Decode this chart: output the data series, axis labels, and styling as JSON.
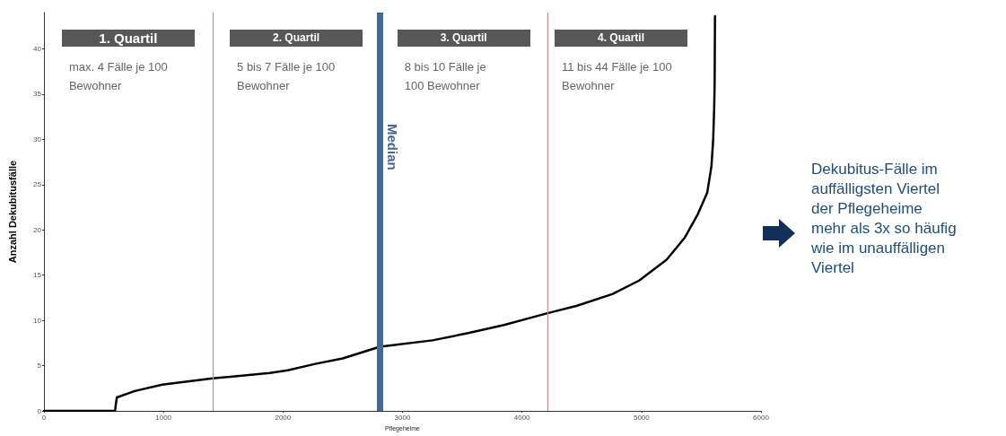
{
  "chart_data": {
    "type": "line",
    "xlabel": "Pflegeheime",
    "ylabel": "Anzahl Dekubitusfälle",
    "x": [
      0,
      595,
      600,
      610,
      760,
      990,
      1410,
      1890,
      2040,
      2270,
      2500,
      2811,
      3250,
      3550,
      3850,
      4213,
      4455,
      4755,
      4980,
      5210,
      5360,
      5470,
      5550,
      5585,
      5600,
      5608,
      5612,
      5615
    ],
    "series": [
      {
        "color": "#000000",
        "values": [
          0,
          0,
          0.6,
          1.5,
          2.2,
          2.9,
          3.6,
          4.2,
          4.5,
          5.2,
          5.8,
          7.1,
          7.8,
          8.6,
          9.5,
          10.8,
          11.6,
          12.9,
          14.4,
          16.7,
          19.1,
          21.7,
          24.1,
          27,
          30,
          33.4,
          36.1,
          43.6
        ]
      }
    ],
    "xlim": [
      0,
      6000
    ],
    "ylim": [
      0,
      44
    ],
    "xticks": [
      0,
      1000,
      2000,
      3000,
      4000,
      5000,
      6000
    ],
    "yticks": [
      0,
      5,
      10,
      15,
      20,
      25,
      30,
      35,
      40
    ],
    "grid": false,
    "marker": "none",
    "line_style": "solid",
    "ref_lines": [
      {
        "axis": "x",
        "value": 1410,
        "color": "#d08a8a"
      },
      {
        "axis": "x",
        "value": 2811,
        "label": "Median",
        "color": "#4a6790"
      },
      {
        "axis": "x",
        "value": 4213,
        "color": "#d08a8a"
      }
    ],
    "annotations": [
      "1. Quartil",
      "2. Quartil",
      "3. Quartil",
      "4. Quartil",
      "max. 4 Fälle je 100\nBewohner",
      "5 bis 7 Fälle je 100\nBewohner",
      "8 bis 10 Fälle je\n100 Bewohner",
      "11 bis 44 Fälle je 100\nBewohner",
      "Dekubitus-Fälle im\nauffälligsten Viertel\nder Pflegeheime\nmehr als 3x so häufig\nwie im unauffälligen\nViertel"
    ]
  }
}
